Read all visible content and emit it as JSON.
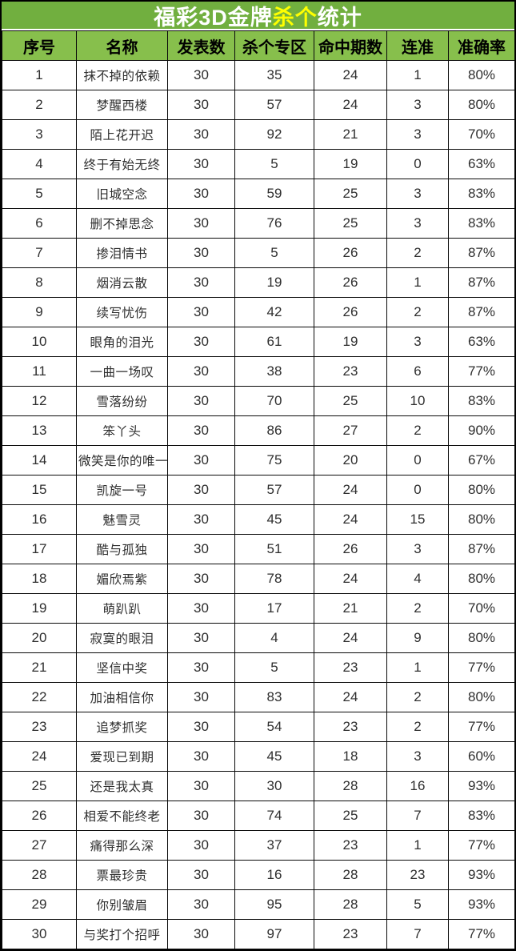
{
  "title": {
    "prefix": "福彩3D金牌",
    "highlight": "杀个",
    "suffix": "统计"
  },
  "colors": {
    "title_bg": "#71AF3F",
    "header_bg": "#87BF4C",
    "title_text": "#FFFFFF",
    "title_highlight_text": "#FFFF00",
    "border": "#000000"
  },
  "table": {
    "columns": [
      "序号",
      "名称",
      "发表数",
      "杀个专区",
      "命中期数",
      "连准",
      "准确率"
    ],
    "rows": [
      {
        "serial": "1",
        "name": "抹不掉的依赖",
        "published": "30",
        "kill_zone": "35",
        "hit_periods": "24",
        "streak": "1",
        "accuracy": "80%"
      },
      {
        "serial": "2",
        "name": "梦醒西楼",
        "published": "30",
        "kill_zone": "57",
        "hit_periods": "24",
        "streak": "3",
        "accuracy": "80%"
      },
      {
        "serial": "3",
        "name": "陌上花开迟",
        "published": "30",
        "kill_zone": "92",
        "hit_periods": "21",
        "streak": "3",
        "accuracy": "70%"
      },
      {
        "serial": "4",
        "name": "终于有始无终",
        "published": "30",
        "kill_zone": "5",
        "hit_periods": "19",
        "streak": "0",
        "accuracy": "63%"
      },
      {
        "serial": "5",
        "name": "旧城空念",
        "published": "30",
        "kill_zone": "59",
        "hit_periods": "25",
        "streak": "3",
        "accuracy": "83%"
      },
      {
        "serial": "6",
        "name": "删不掉思念",
        "published": "30",
        "kill_zone": "76",
        "hit_periods": "25",
        "streak": "3",
        "accuracy": "83%"
      },
      {
        "serial": "7",
        "name": "掺泪情书",
        "published": "30",
        "kill_zone": "5",
        "hit_periods": "26",
        "streak": "2",
        "accuracy": "87%"
      },
      {
        "serial": "8",
        "name": "烟消云散",
        "published": "30",
        "kill_zone": "19",
        "hit_periods": "26",
        "streak": "1",
        "accuracy": "87%"
      },
      {
        "serial": "9",
        "name": "续写忧伤",
        "published": "30",
        "kill_zone": "42",
        "hit_periods": "26",
        "streak": "2",
        "accuracy": "87%"
      },
      {
        "serial": "10",
        "name": "眼角的泪光",
        "published": "30",
        "kill_zone": "61",
        "hit_periods": "19",
        "streak": "3",
        "accuracy": "63%"
      },
      {
        "serial": "11",
        "name": "一曲一场叹",
        "published": "30",
        "kill_zone": "38",
        "hit_periods": "23",
        "streak": "6",
        "accuracy": "77%"
      },
      {
        "serial": "12",
        "name": "雪落纷纷",
        "published": "30",
        "kill_zone": "70",
        "hit_periods": "25",
        "streak": "10",
        "accuracy": "83%"
      },
      {
        "serial": "13",
        "name": "笨丫头",
        "published": "30",
        "kill_zone": "86",
        "hit_periods": "27",
        "streak": "2",
        "accuracy": "90%"
      },
      {
        "serial": "14",
        "name": "微笑是你的唯一",
        "published": "30",
        "kill_zone": "75",
        "hit_periods": "20",
        "streak": "0",
        "accuracy": "67%"
      },
      {
        "serial": "15",
        "name": "凯旋一号",
        "published": "30",
        "kill_zone": "57",
        "hit_periods": "24",
        "streak": "0",
        "accuracy": "80%"
      },
      {
        "serial": "16",
        "name": "魅雪灵",
        "published": "30",
        "kill_zone": "45",
        "hit_periods": "24",
        "streak": "15",
        "accuracy": "80%"
      },
      {
        "serial": "17",
        "name": "酷与孤独",
        "published": "30",
        "kill_zone": "51",
        "hit_periods": "26",
        "streak": "3",
        "accuracy": "87%"
      },
      {
        "serial": "18",
        "name": "媚欣焉紫",
        "published": "30",
        "kill_zone": "78",
        "hit_periods": "24",
        "streak": "4",
        "accuracy": "80%"
      },
      {
        "serial": "19",
        "name": "萌趴趴",
        "published": "30",
        "kill_zone": "17",
        "hit_periods": "21",
        "streak": "2",
        "accuracy": "70%"
      },
      {
        "serial": "20",
        "name": "寂寞的眼泪",
        "published": "30",
        "kill_zone": "4",
        "hit_periods": "24",
        "streak": "9",
        "accuracy": "80%"
      },
      {
        "serial": "21",
        "name": "坚信中奖",
        "published": "30",
        "kill_zone": "5",
        "hit_periods": "23",
        "streak": "1",
        "accuracy": "77%"
      },
      {
        "serial": "22",
        "name": "加油相信你",
        "published": "30",
        "kill_zone": "83",
        "hit_periods": "24",
        "streak": "2",
        "accuracy": "80%"
      },
      {
        "serial": "23",
        "name": "追梦抓奖",
        "published": "30",
        "kill_zone": "54",
        "hit_periods": "23",
        "streak": "2",
        "accuracy": "77%"
      },
      {
        "serial": "24",
        "name": "爱现已到期",
        "published": "30",
        "kill_zone": "45",
        "hit_periods": "18",
        "streak": "3",
        "accuracy": "60%"
      },
      {
        "serial": "25",
        "name": "还是我太真",
        "published": "30",
        "kill_zone": "30",
        "hit_periods": "28",
        "streak": "16",
        "accuracy": "93%"
      },
      {
        "serial": "26",
        "name": "相爱不能终老",
        "published": "30",
        "kill_zone": "74",
        "hit_periods": "25",
        "streak": "7",
        "accuracy": "83%"
      },
      {
        "serial": "27",
        "name": "痛得那么深",
        "published": "30",
        "kill_zone": "37",
        "hit_periods": "23",
        "streak": "1",
        "accuracy": "77%"
      },
      {
        "serial": "28",
        "name": "票最珍贵",
        "published": "30",
        "kill_zone": "16",
        "hit_periods": "28",
        "streak": "23",
        "accuracy": "93%"
      },
      {
        "serial": "29",
        "name": "你别皱眉",
        "published": "30",
        "kill_zone": "95",
        "hit_periods": "28",
        "streak": "5",
        "accuracy": "93%"
      },
      {
        "serial": "30",
        "name": "与奖打个招呼",
        "published": "30",
        "kill_zone": "97",
        "hit_periods": "23",
        "streak": "7",
        "accuracy": "77%"
      }
    ]
  }
}
